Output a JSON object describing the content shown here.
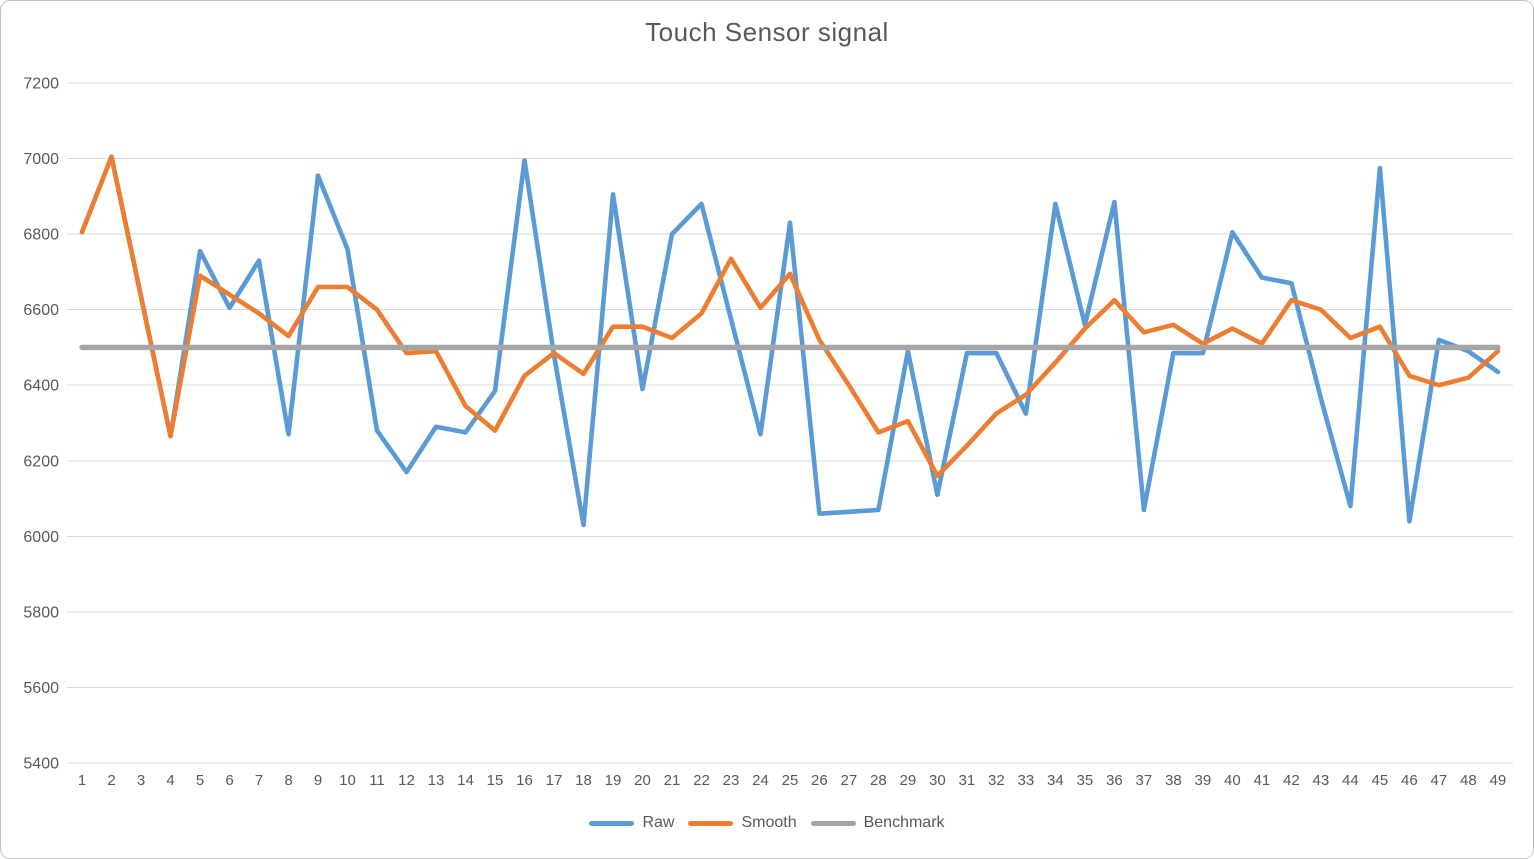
{
  "chart_data": {
    "type": "line",
    "title": "Touch Sensor signal",
    "categories": [
      1,
      2,
      3,
      4,
      5,
      6,
      7,
      8,
      9,
      10,
      11,
      12,
      13,
      14,
      15,
      16,
      17,
      18,
      19,
      20,
      21,
      22,
      23,
      24,
      25,
      26,
      27,
      28,
      29,
      30,
      31,
      32,
      33,
      34,
      35,
      36,
      37,
      38,
      39,
      40,
      41,
      42,
      43,
      44,
      45,
      46,
      47,
      48,
      49
    ],
    "series": [
      {
        "name": "Raw",
        "color": "#5B9BD5",
        "values": [
          6805,
          7005,
          6635,
          6265,
          6755,
          6605,
          6730,
          6270,
          6955,
          6760,
          6280,
          6170,
          6290,
          6275,
          6385,
          6995,
          6480,
          6030,
          6905,
          6390,
          6800,
          6880,
          6575,
          6270,
          6830,
          6060,
          6065,
          6070,
          6490,
          6110,
          6485,
          6485,
          6325,
          6880,
          6560,
          6885,
          6070,
          6485,
          6485,
          6805,
          6685,
          6670,
          6365,
          6080,
          6975,
          6040,
          6520,
          6490,
          6435
        ]
      },
      {
        "name": "Smooth",
        "color": "#ED7D31",
        "values": [
          6805,
          7005,
          6635,
          6265,
          6690,
          6640,
          6590,
          6530,
          6660,
          6660,
          6600,
          6485,
          6490,
          6345,
          6280,
          6425,
          6485,
          6430,
          6555,
          6555,
          6525,
          6590,
          6735,
          6605,
          6695,
          6520,
          6400,
          6275,
          6305,
          6160,
          6240,
          6325,
          6375,
          6460,
          6550,
          6625,
          6540,
          6560,
          6510,
          6550,
          6510,
          6625,
          6600,
          6525,
          6555,
          6425,
          6400,
          6420,
          6490
        ]
      },
      {
        "name": "Benchmark",
        "color": "#A5A5A5",
        "constant": 6500
      }
    ],
    "benchmark_value": 6500,
    "ylim": [
      5400,
      7200
    ],
    "ytick_step": 200,
    "y_ticks": [
      7200,
      7000,
      6800,
      6600,
      6400,
      6200,
      6000,
      5800,
      5600,
      5400
    ],
    "grid": true,
    "legend_position": "bottom",
    "colors": {
      "grid_line": "#D9D9D9",
      "axis_text": "#595959",
      "title_text": "#595959",
      "background": "#FFFFFF"
    }
  }
}
